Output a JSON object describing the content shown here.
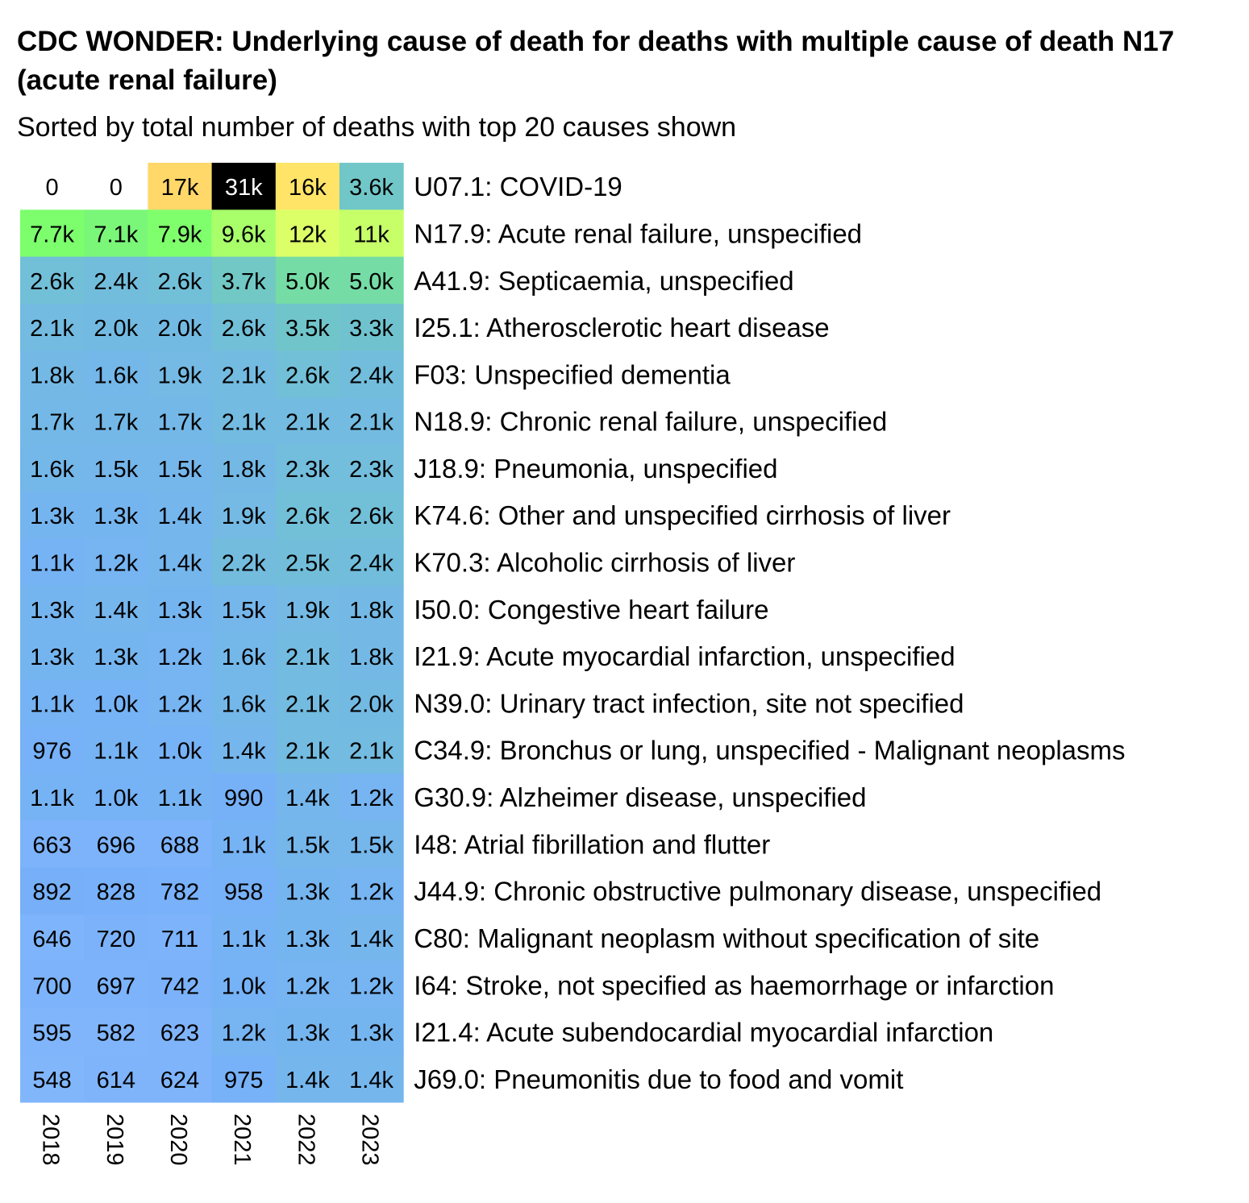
{
  "chart_data": {
    "type": "heatmap",
    "title": "CDC WONDER: Underlying cause of death for deaths with multiple cause of death N17 (acute renal failure)",
    "subtitle": "Sorted by total number of deaths with top 20 causes shown",
    "xlabel": "",
    "ylabel": "",
    "x": [
      "2018",
      "2019",
      "2020",
      "2021",
      "2022",
      "2023"
    ],
    "rows": [
      {
        "label": "U07.1: COVID-19",
        "values": [
          0,
          0,
          17000,
          31000,
          16000,
          3600
        ],
        "labels": [
          "0",
          "0",
          "17k",
          "31k",
          "16k",
          "3.6k"
        ]
      },
      {
        "label": "N17.9: Acute renal failure, unspecified",
        "values": [
          7700,
          7100,
          7900,
          9600,
          12000,
          11000
        ],
        "labels": [
          "7.7k",
          "7.1k",
          "7.9k",
          "9.6k",
          "12k",
          "11k"
        ]
      },
      {
        "label": "A41.9: Septicaemia, unspecified",
        "values": [
          2600,
          2400,
          2600,
          3700,
          5000,
          5000
        ],
        "labels": [
          "2.6k",
          "2.4k",
          "2.6k",
          "3.7k",
          "5.0k",
          "5.0k"
        ]
      },
      {
        "label": "I25.1: Atherosclerotic heart disease",
        "values": [
          2100,
          2000,
          2000,
          2600,
          3500,
          3300
        ],
        "labels": [
          "2.1k",
          "2.0k",
          "2.0k",
          "2.6k",
          "3.5k",
          "3.3k"
        ]
      },
      {
        "label": "F03: Unspecified dementia",
        "values": [
          1800,
          1600,
          1900,
          2100,
          2600,
          2400
        ],
        "labels": [
          "1.8k",
          "1.6k",
          "1.9k",
          "2.1k",
          "2.6k",
          "2.4k"
        ]
      },
      {
        "label": "N18.9: Chronic renal failure, unspecified",
        "values": [
          1700,
          1700,
          1700,
          2100,
          2100,
          2100
        ],
        "labels": [
          "1.7k",
          "1.7k",
          "1.7k",
          "2.1k",
          "2.1k",
          "2.1k"
        ]
      },
      {
        "label": "J18.9: Pneumonia, unspecified",
        "values": [
          1600,
          1500,
          1500,
          1800,
          2300,
          2300
        ],
        "labels": [
          "1.6k",
          "1.5k",
          "1.5k",
          "1.8k",
          "2.3k",
          "2.3k"
        ]
      },
      {
        "label": "K74.6: Other and unspecified cirrhosis of liver",
        "values": [
          1300,
          1300,
          1400,
          1900,
          2600,
          2600
        ],
        "labels": [
          "1.3k",
          "1.3k",
          "1.4k",
          "1.9k",
          "2.6k",
          "2.6k"
        ]
      },
      {
        "label": "K70.3: Alcoholic cirrhosis of liver",
        "values": [
          1100,
          1200,
          1400,
          2200,
          2500,
          2400
        ],
        "labels": [
          "1.1k",
          "1.2k",
          "1.4k",
          "2.2k",
          "2.5k",
          "2.4k"
        ]
      },
      {
        "label": "I50.0: Congestive heart failure",
        "values": [
          1300,
          1400,
          1300,
          1500,
          1900,
          1800
        ],
        "labels": [
          "1.3k",
          "1.4k",
          "1.3k",
          "1.5k",
          "1.9k",
          "1.8k"
        ]
      },
      {
        "label": "I21.9: Acute myocardial infarction, unspecified",
        "values": [
          1300,
          1300,
          1200,
          1600,
          2100,
          1800
        ],
        "labels": [
          "1.3k",
          "1.3k",
          "1.2k",
          "1.6k",
          "2.1k",
          "1.8k"
        ]
      },
      {
        "label": "N39.0: Urinary tract infection, site not specified",
        "values": [
          1100,
          1000,
          1200,
          1600,
          2100,
          2000
        ],
        "labels": [
          "1.1k",
          "1.0k",
          "1.2k",
          "1.6k",
          "2.1k",
          "2.0k"
        ]
      },
      {
        "label": "C34.9: Bronchus or lung, unspecified - Malignant neoplasms",
        "values": [
          976,
          1100,
          1000,
          1400,
          2100,
          2100
        ],
        "labels": [
          "976",
          "1.1k",
          "1.0k",
          "1.4k",
          "2.1k",
          "2.1k"
        ]
      },
      {
        "label": "G30.9: Alzheimer disease, unspecified",
        "values": [
          1100,
          1000,
          1100,
          990,
          1400,
          1200
        ],
        "labels": [
          "1.1k",
          "1.0k",
          "1.1k",
          "990",
          "1.4k",
          "1.2k"
        ]
      },
      {
        "label": "I48: Atrial fibrillation and flutter",
        "values": [
          663,
          696,
          688,
          1100,
          1500,
          1500
        ],
        "labels": [
          "663",
          "696",
          "688",
          "1.1k",
          "1.5k",
          "1.5k"
        ]
      },
      {
        "label": "J44.9: Chronic obstructive pulmonary disease, unspecified",
        "values": [
          892,
          828,
          782,
          958,
          1300,
          1200
        ],
        "labels": [
          "892",
          "828",
          "782",
          "958",
          "1.3k",
          "1.2k"
        ]
      },
      {
        "label": "C80: Malignant neoplasm without specification of site",
        "values": [
          646,
          720,
          711,
          1100,
          1300,
          1400
        ],
        "labels": [
          "646",
          "720",
          "711",
          "1.1k",
          "1.3k",
          "1.4k"
        ]
      },
      {
        "label": "I64: Stroke, not specified as haemorrhage or infarction",
        "values": [
          700,
          697,
          742,
          1000,
          1200,
          1200
        ],
        "labels": [
          "700",
          "697",
          "742",
          "1.0k",
          "1.2k",
          "1.2k"
        ]
      },
      {
        "label": "I21.4: Acute subendocardial myocardial infarction",
        "values": [
          595,
          582,
          623,
          1200,
          1300,
          1300
        ],
        "labels": [
          "595",
          "582",
          "623",
          "1.2k",
          "1.3k",
          "1.3k"
        ]
      },
      {
        "label": "J69.0: Pneumonitis due to food and vomit",
        "values": [
          548,
          614,
          624,
          975,
          1400,
          1400
        ],
        "labels": [
          "548",
          "614",
          "624",
          "975",
          "1.4k",
          "1.4k"
        ]
      }
    ],
    "color_scale": {
      "type": "sqrt-gradient",
      "zero_color": "#ffffff",
      "stops": [
        "#aaccff",
        "#77b0fa",
        "#70c4cc",
        "#7cff6c",
        "#ffff66",
        "#ffa86c",
        "#000000"
      ],
      "domain": [
        0,
        31000
      ]
    },
    "legend": "none",
    "grid": false
  }
}
